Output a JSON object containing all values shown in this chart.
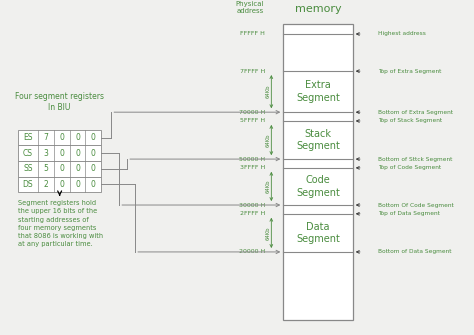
{
  "bg_color": "#f0f0ee",
  "green": "#4a8c3f",
  "gray": "#888888",
  "dark": "#333333",
  "registers": [
    {
      "name": "ES",
      "val": "7"
    },
    {
      "name": "CS",
      "val": "3"
    },
    {
      "name": "SS",
      "val": "5"
    },
    {
      "name": "DS",
      "val": "2"
    }
  ],
  "note_text": "Segment registers hold\nthe upper 16 bits of the\nstarting addresses of\nfour memory segments\nthat 8086 is working with\nat any particular time.",
  "right_labels": [
    {
      "addr": "FFFFF H",
      "text": "Highest address"
    },
    {
      "addr": "7FFFF H",
      "text": "Top of Extra Segment"
    },
    {
      "addr": "70000 H",
      "text": "Bottom of Extra Segment"
    },
    {
      "addr": "5FFFF H",
      "text": "Top of Stack Segment"
    },
    {
      "addr": "50000 H",
      "text": "Bottom of Sttck Segment"
    },
    {
      "addr": "3FFFF H",
      "text": "Top of Code Segment"
    },
    {
      "addr": "30000 H",
      "text": "Bottom Of Code Segment"
    },
    {
      "addr": "2FFFF H",
      "text": "Top of Data Segment"
    },
    {
      "addr": "20000 H",
      "text": "Bottom of Data Segment"
    }
  ]
}
